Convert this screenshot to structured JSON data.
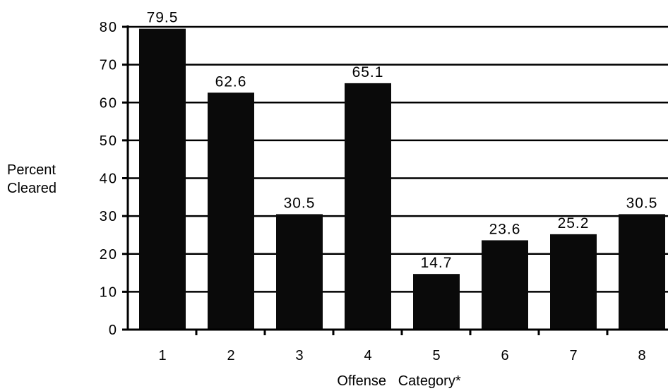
{
  "chart_data": {
    "type": "bar",
    "categories": [
      "1",
      "2",
      "3",
      "4",
      "5",
      "6",
      "7",
      "8"
    ],
    "values": [
      79.5,
      62.6,
      30.5,
      65.1,
      14.7,
      23.6,
      25.2,
      30.5
    ],
    "data_labels": [
      "79.5",
      "62.6",
      "30.5",
      "65.1",
      "14.7",
      "23.6",
      "25.2",
      "30.5"
    ],
    "ylabel_line1": "Percent",
    "ylabel_line2": "Cleared",
    "xlabel": "Offense   Category*",
    "ylim": [
      0,
      80
    ],
    "yticks": [
      0,
      10,
      20,
      30,
      40,
      50,
      60,
      70,
      80
    ],
    "grid": true,
    "bar_color": "#0a0a0a",
    "grid_color": "#000000"
  }
}
